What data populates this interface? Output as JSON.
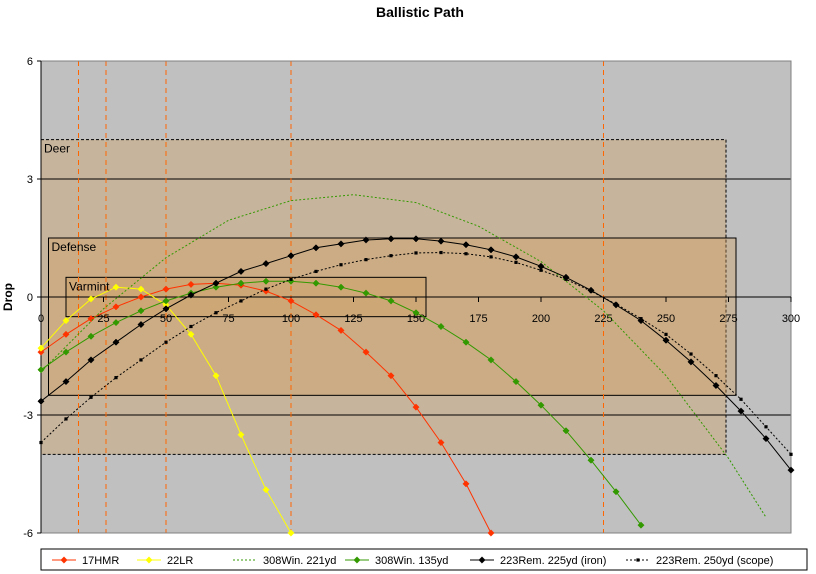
{
  "chart_data": {
    "type": "line",
    "title": "Ballistic Path",
    "ylabel": "Drop",
    "xlabel": "",
    "xlim": [
      0,
      300
    ],
    "ylim": [
      -6,
      6
    ],
    "xticks": [
      0,
      25,
      50,
      75,
      100,
      125,
      150,
      175,
      200,
      225,
      250,
      275,
      300
    ],
    "yticks": [
      -6,
      -3,
      0,
      3,
      6
    ],
    "grid": "horizontal lines at -3 and 3",
    "background": "#C0C0C0",
    "legend_position": "bottom",
    "zones": [
      {
        "label": "Deer",
        "x": [
          0,
          274
        ],
        "y": [
          -4,
          4
        ]
      },
      {
        "label": "Defense",
        "x": [
          3,
          278
        ],
        "y": [
          -2.5,
          1.5
        ]
      },
      {
        "label": "Varmint",
        "x": [
          10,
          154
        ],
        "y": [
          -0.5,
          0.5
        ]
      }
    ],
    "zone_fill": "#D2A060",
    "vertical_markers": [
      15,
      26,
      50,
      100,
      225
    ],
    "marker_color": "#FF6600",
    "series": [
      {
        "name": "17HMR",
        "color": "#FF3300",
        "dash": "solid",
        "marker": "diamond",
        "x": [
          0,
          10,
          20,
          30,
          40,
          50,
          60,
          70,
          80,
          90,
          100,
          110,
          120,
          130,
          140,
          150,
          160,
          170,
          180
        ],
        "y": [
          -1.4,
          -0.95,
          -0.55,
          -0.25,
          0.0,
          0.2,
          0.32,
          0.35,
          0.3,
          0.15,
          -0.1,
          -0.45,
          -0.85,
          -1.4,
          -2.0,
          -2.8,
          -3.7,
          -4.75,
          -6.0
        ]
      },
      {
        "name": "22LR",
        "color": "#FFFF00",
        "dash": "solid",
        "marker": "diamond",
        "x": [
          0,
          10,
          20,
          30,
          40,
          50,
          60,
          70,
          80,
          90,
          100
        ],
        "y": [
          -1.3,
          -0.6,
          -0.05,
          0.25,
          0.2,
          -0.2,
          -0.95,
          -2.0,
          -3.5,
          -4.9,
          -6.0
        ]
      },
      {
        "name": "308Win. 221yd",
        "color": "#339900",
        "dash": "dotted",
        "marker": "none",
        "x": [
          0,
          25,
          50,
          75,
          100,
          125,
          150,
          175,
          200,
          225,
          250,
          275,
          290
        ],
        "y": [
          -1.9,
          -0.3,
          1.0,
          1.95,
          2.45,
          2.6,
          2.4,
          1.8,
          0.9,
          -0.35,
          -2.0,
          -4.1,
          -5.6
        ]
      },
      {
        "name": "308Win. 135yd",
        "color": "#339900",
        "dash": "solid",
        "marker": "diamond",
        "x": [
          0,
          10,
          20,
          30,
          40,
          50,
          60,
          70,
          80,
          90,
          100,
          110,
          120,
          130,
          140,
          150,
          160,
          170,
          180,
          190,
          200,
          210,
          220,
          230,
          240
        ],
        "y": [
          -1.85,
          -1.4,
          -1.0,
          -0.65,
          -0.35,
          -0.1,
          0.1,
          0.25,
          0.35,
          0.4,
          0.4,
          0.35,
          0.25,
          0.1,
          -0.1,
          -0.4,
          -0.75,
          -1.15,
          -1.6,
          -2.15,
          -2.75,
          -3.4,
          -4.15,
          -4.95,
          -5.8
        ]
      },
      {
        "name": "223Rem. 225yd (iron)",
        "color": "#000000",
        "dash": "solid",
        "marker": "diamond",
        "x": [
          0,
          10,
          20,
          30,
          40,
          50,
          60,
          70,
          80,
          90,
          100,
          110,
          120,
          130,
          140,
          150,
          160,
          170,
          180,
          190,
          200,
          210,
          220,
          230,
          240,
          250,
          260,
          270,
          280,
          290,
          300
        ],
        "y": [
          -2.65,
          -2.15,
          -1.6,
          -1.15,
          -0.7,
          -0.3,
          0.05,
          0.35,
          0.65,
          0.85,
          1.05,
          1.25,
          1.35,
          1.45,
          1.48,
          1.48,
          1.42,
          1.33,
          1.2,
          1.02,
          0.78,
          0.5,
          0.17,
          -0.2,
          -0.6,
          -1.1,
          -1.65,
          -2.25,
          -2.9,
          -3.6,
          -4.4
        ]
      },
      {
        "name": "223Rem. 250yd (scope)",
        "color": "#000000",
        "dash": "dotted",
        "marker": "square",
        "x": [
          0,
          10,
          20,
          30,
          40,
          50,
          60,
          70,
          80,
          90,
          100,
          110,
          120,
          130,
          140,
          150,
          160,
          170,
          180,
          190,
          200,
          210,
          220,
          230,
          240,
          250,
          260,
          270,
          280,
          290,
          300
        ],
        "y": [
          -3.7,
          -3.1,
          -2.55,
          -2.05,
          -1.6,
          -1.15,
          -0.75,
          -0.4,
          -0.1,
          0.2,
          0.45,
          0.65,
          0.82,
          0.95,
          1.05,
          1.12,
          1.13,
          1.1,
          1.02,
          0.88,
          0.68,
          0.45,
          0.15,
          -0.18,
          -0.55,
          -0.95,
          -1.45,
          -2.0,
          -2.6,
          -3.3,
          -4.0
        ]
      }
    ]
  }
}
